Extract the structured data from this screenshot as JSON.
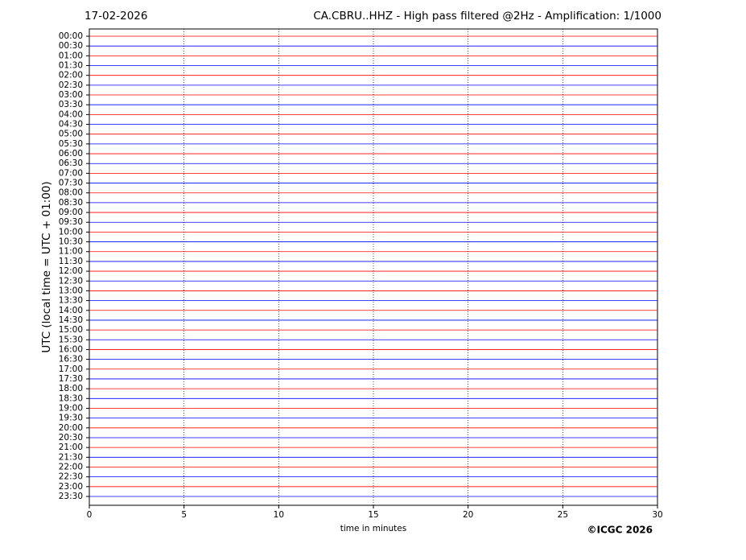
{
  "chart_data": {
    "type": "helicorder",
    "date": "17-02-2026",
    "title": "CA.CBRU..HHZ - High pass filtered @2Hz - Amplification: 1/1000",
    "xlabel": "time in minutes",
    "ylabel": "UTC (local time = UTC + 01:00)",
    "copyright": "©ICGC 2026",
    "categories": [
      "00:00",
      "00:30",
      "01:00",
      "01:30",
      "02:00",
      "02:30",
      "03:00",
      "03:30",
      "04:00",
      "04:30",
      "05:00",
      "05:30",
      "06:00",
      "06:30",
      "07:00",
      "07:30",
      "08:00",
      "08:30",
      "09:00",
      "09:30",
      "10:00",
      "10:30",
      "11:00",
      "11:30",
      "12:00",
      "12:30",
      "13:00",
      "13:30",
      "14:00",
      "14:30",
      "15:00",
      "15:30",
      "16:00",
      "16:30",
      "17:00",
      "17:30",
      "18:00",
      "18:30",
      "19:00",
      "19:30",
      "20:00",
      "20:30",
      "21:00",
      "21:30",
      "22:00",
      "22:30",
      "23:00",
      "23:30"
    ],
    "colors": [
      "#ff0000",
      "#0000ff"
    ],
    "xlim": [
      0,
      30
    ],
    "xticks": [
      0,
      5,
      10,
      15,
      20,
      25,
      30
    ],
    "grid": true
  }
}
